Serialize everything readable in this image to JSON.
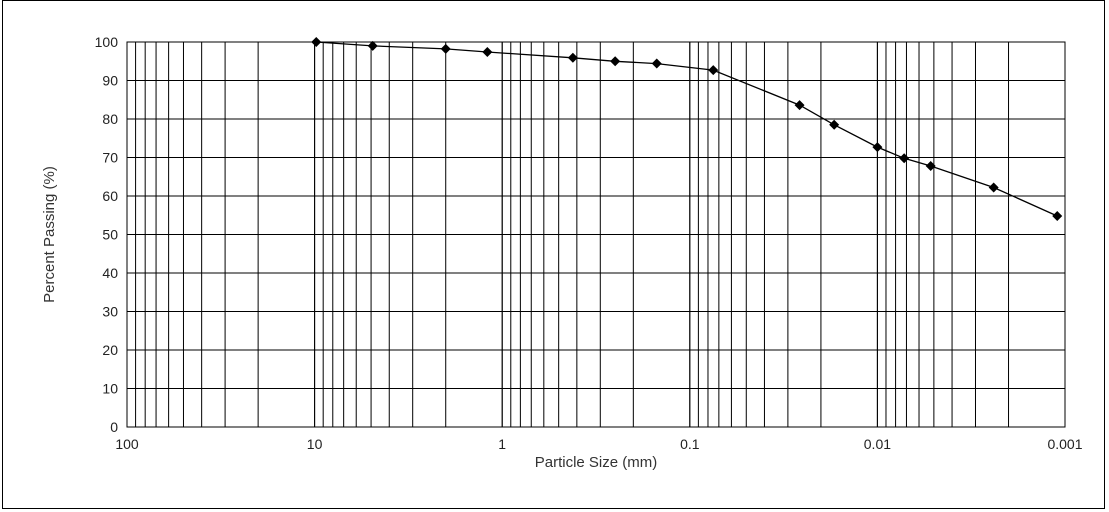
{
  "chart_data": {
    "type": "scatter",
    "title": "",
    "xlabel": "Particle Size (mm)",
    "ylabel": "Percent Passing (%)",
    "xscale": "log",
    "xaxis_reversed": true,
    "xlim": [
      100,
      0.001
    ],
    "ylim": [
      0,
      100
    ],
    "grid": true,
    "legend": "none",
    "x_tick_labels": [
      "100",
      "10",
      "1",
      "0.1",
      "0.01",
      "0.001"
    ],
    "x_ticks": [
      100,
      10,
      1,
      0.1,
      0.01,
      0.001
    ],
    "y_tick_labels": [
      "0",
      "10",
      "20",
      "30",
      "40",
      "50",
      "60",
      "70",
      "80",
      "90",
      "100"
    ],
    "y_ticks": [
      0,
      10,
      20,
      30,
      40,
      50,
      60,
      70,
      80,
      90,
      100
    ],
    "series": [
      {
        "marker": "diamond",
        "line": true,
        "color": "#000000",
        "points": [
          {
            "x": 9.8,
            "y": 100.0
          },
          {
            "x": 4.9,
            "y": 99.0
          },
          {
            "x": 2.0,
            "y": 98.2
          },
          {
            "x": 1.2,
            "y": 97.4
          },
          {
            "x": 0.42,
            "y": 95.9
          },
          {
            "x": 0.25,
            "y": 95.0
          },
          {
            "x": 0.15,
            "y": 94.4
          },
          {
            "x": 0.075,
            "y": 92.7
          },
          {
            "x": 0.026,
            "y": 83.6
          },
          {
            "x": 0.017,
            "y": 78.5
          },
          {
            "x": 0.01,
            "y": 72.7
          },
          {
            "x": 0.0072,
            "y": 69.8
          },
          {
            "x": 0.0052,
            "y": 67.8
          },
          {
            "x": 0.0024,
            "y": 62.2
          },
          {
            "x": 0.0011,
            "y": 54.8
          }
        ]
      }
    ]
  }
}
